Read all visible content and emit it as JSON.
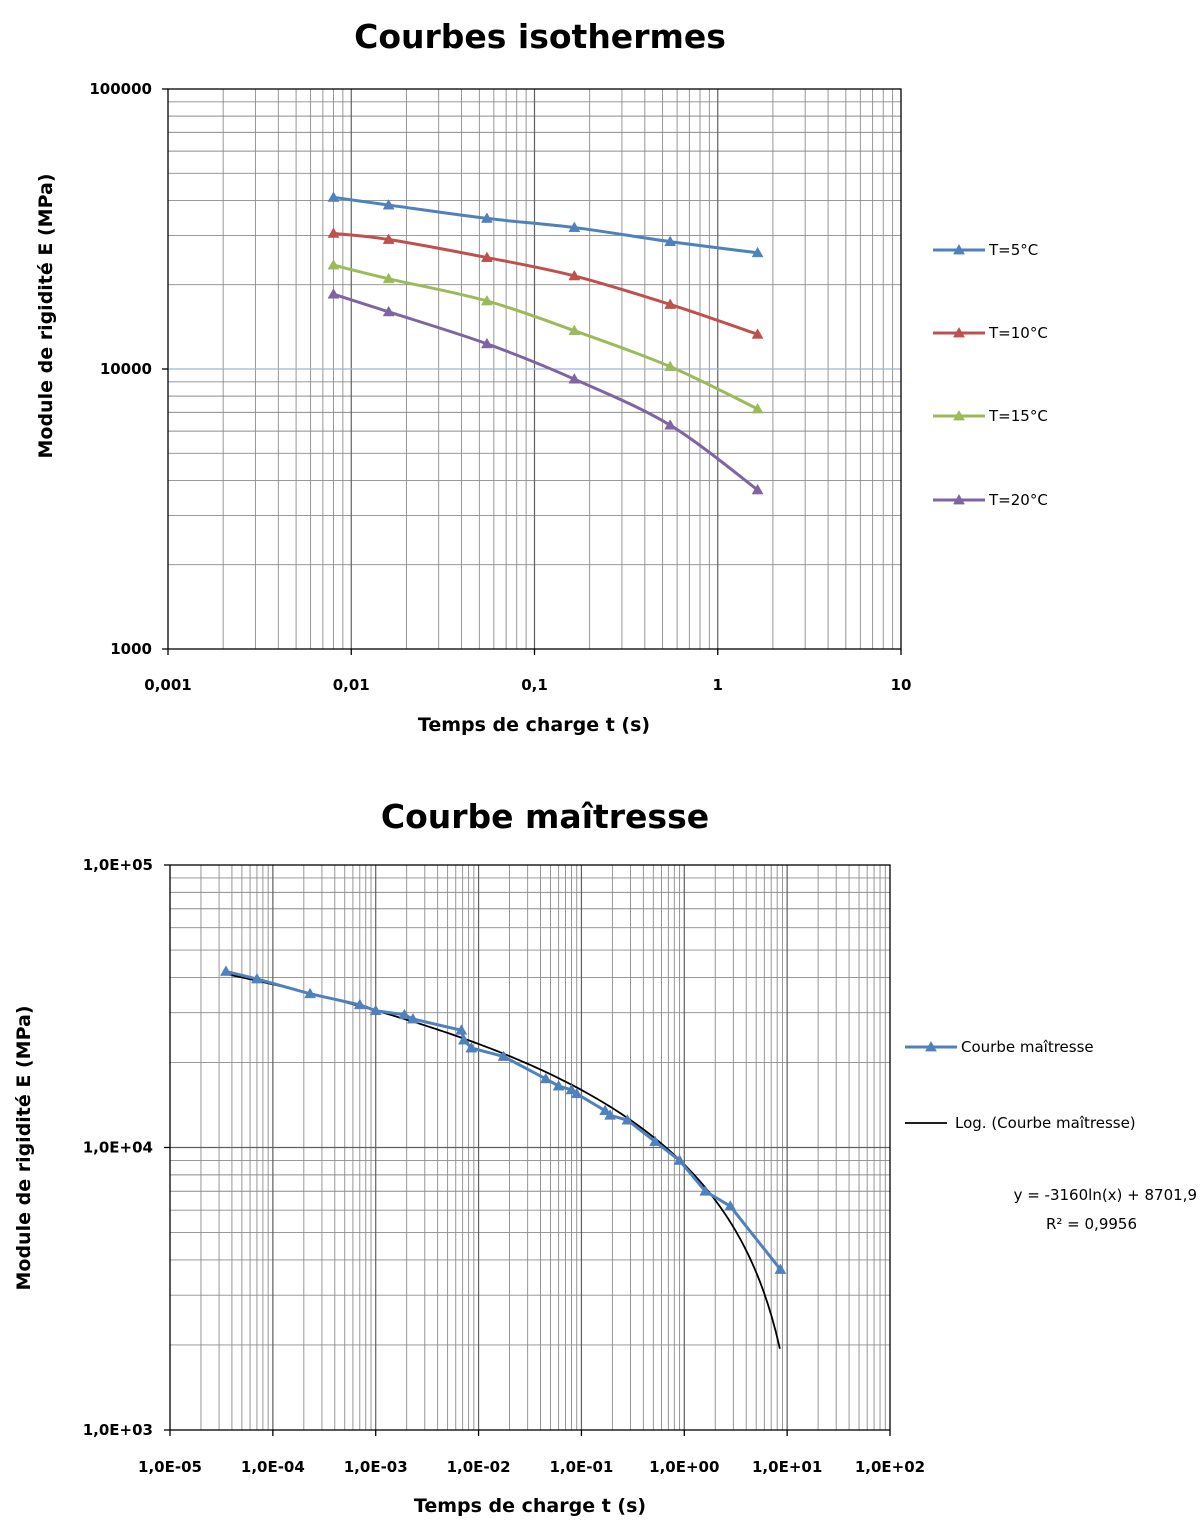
{
  "chart_data": [
    {
      "type": "line",
      "title": "Courbes isothermes",
      "xlabel": "Temps de charge    t (s)",
      "ylabel": "Module de rigidité     E (MPa)",
      "xscale": "log",
      "yscale": "log",
      "xlim": [
        0.001,
        10
      ],
      "ylim": [
        1000,
        100000
      ],
      "xticks": [
        "0,001",
        "0,01",
        "0,1",
        "1",
        "10"
      ],
      "yticks": [
        "1000",
        "10000",
        "100000"
      ],
      "grid": true,
      "legend": "right",
      "series": [
        {
          "name": "T=5°C",
          "color": "#4f81bd",
          "x": [
            0.008,
            0.016,
            0.055,
            0.165,
            0.55,
            1.65
          ],
          "y": [
            41000,
            38500,
            34500,
            32000,
            28500,
            26000
          ]
        },
        {
          "name": "T=10°C",
          "color": "#c0504d",
          "x": [
            0.008,
            0.016,
            0.055,
            0.165,
            0.55,
            1.65
          ],
          "y": [
            30500,
            29000,
            25000,
            21500,
            17000,
            13300
          ]
        },
        {
          "name": "T=15°C",
          "color": "#9bbb59",
          "x": [
            0.008,
            0.016,
            0.055,
            0.165,
            0.55,
            1.65
          ],
          "y": [
            23500,
            21000,
            17500,
            13700,
            10200,
            7200
          ]
        },
        {
          "name": "T=20°C",
          "color": "#8064a2",
          "x": [
            0.008,
            0.016,
            0.055,
            0.165,
            0.55,
            1.65
          ],
          "y": [
            18500,
            16000,
            12300,
            9200,
            6300,
            3700
          ]
        }
      ]
    },
    {
      "type": "line",
      "title": "Courbe maîtresse",
      "xlabel": "Temps de charge    t (s)",
      "ylabel": "Module de rigidité     E (MPa)",
      "xscale": "log",
      "yscale": "log",
      "xlim": [
        1e-05,
        100
      ],
      "ylim": [
        1000,
        100000
      ],
      "xticks": [
        "1,0E-05",
        "1,0E-04",
        "1,0E-03",
        "1,0E-02",
        "1,0E-01",
        "1,0E+00",
        "1,0E+01",
        "1,0E+02"
      ],
      "yticks": [
        "1,0E+03",
        "1,0E+04",
        "1,0E+05"
      ],
      "grid": true,
      "legend": "right",
      "series": [
        {
          "name": "Courbe  maîtresse",
          "color": "#4f81bd",
          "x": [
            3.5e-05,
            7e-05,
            0.00023,
            0.0007,
            0.001,
            0.0019,
            0.0023,
            0.0068,
            0.0072,
            0.0085,
            0.0175,
            0.045,
            0.06,
            0.08,
            0.09,
            0.17,
            0.19,
            0.28,
            0.52,
            0.9,
            1.6,
            2.8,
            8.6
          ],
          "y": [
            42000,
            39500,
            35000,
            32000,
            30500,
            29500,
            28500,
            26000,
            24000,
            22500,
            21000,
            17500,
            16500,
            16000,
            15500,
            13500,
            13000,
            12500,
            10500,
            9000,
            7000,
            6200,
            3700
          ]
        }
      ],
      "trendline": {
        "name": "Log. (Courbe  maîtresse)",
        "color": "#000000",
        "type": "logarithmic",
        "equation": "y = -3160ln(x) + 8701,9",
        "r2": "R² = 0,9956",
        "x_range": [
          3.5e-05,
          8.5
        ]
      }
    }
  ]
}
